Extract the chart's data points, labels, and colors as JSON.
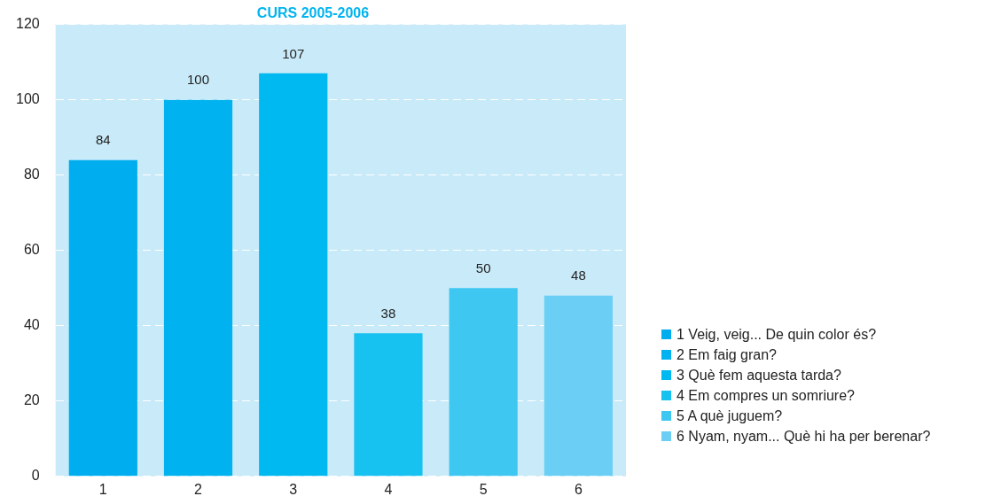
{
  "chart_data": {
    "type": "bar",
    "title": "CURS 2005-2006",
    "categories": [
      "1",
      "2",
      "3",
      "4",
      "5",
      "6"
    ],
    "stacked": true,
    "series": [
      {
        "name": "1 Veig, veig... De quin color és?",
        "color": "#00adee",
        "values": [
          84,
          null,
          null,
          null,
          null,
          null
        ]
      },
      {
        "name": "2 Em faig gran?",
        "color": "#00b2ef",
        "values": [
          null,
          100,
          null,
          null,
          null,
          null
        ]
      },
      {
        "name": "3 Què fem aquesta tarda?",
        "color": "#00b9f1",
        "values": [
          null,
          null,
          107,
          null,
          null,
          null
        ]
      },
      {
        "name": "4 Em compres un somriure?",
        "color": "#17c1f0",
        "values": [
          null,
          null,
          null,
          38,
          null,
          null
        ]
      },
      {
        "name": "5 A què juguem?",
        "color": "#3ec7f1",
        "values": [
          null,
          null,
          null,
          null,
          50,
          null
        ]
      },
      {
        "name": "6 Nyam, nyam... Què hi ha per berenar?",
        "color": "#6bcff5",
        "values": [
          null,
          null,
          null,
          null,
          null,
          48
        ]
      }
    ],
    "ylim": [
      0,
      120
    ],
    "yticks": [
      0,
      20,
      40,
      60,
      80,
      100,
      120
    ],
    "grid": "y",
    "legend": "right",
    "data_labels": true
  }
}
